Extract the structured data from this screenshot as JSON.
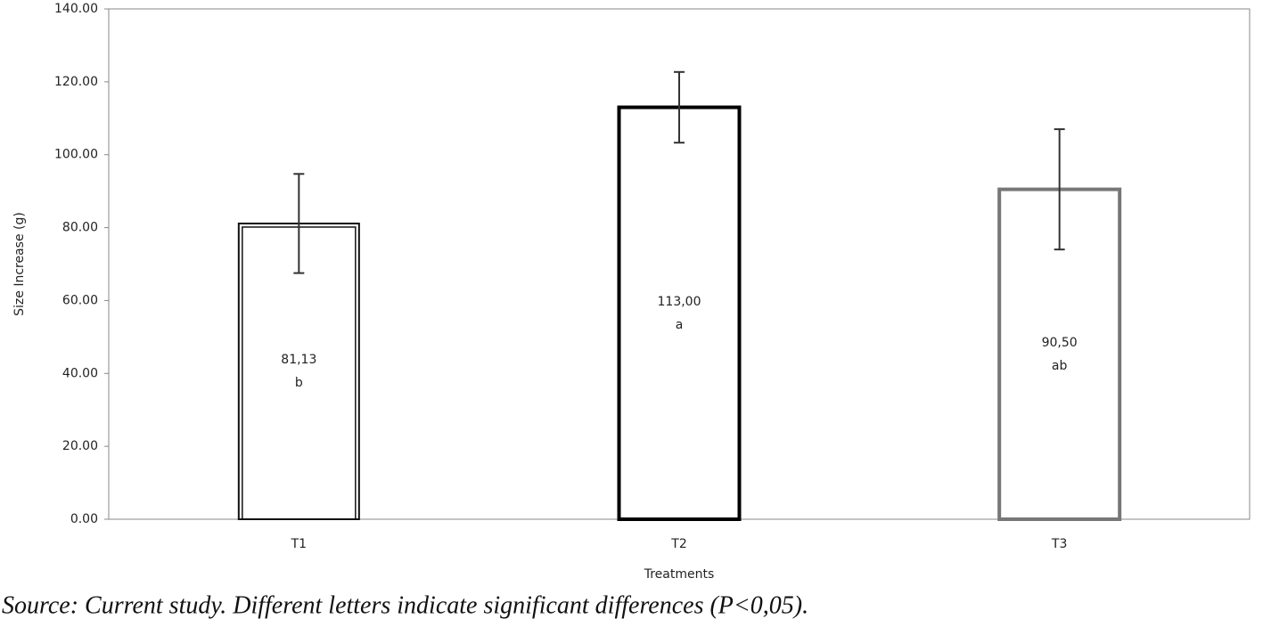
{
  "chart_data": {
    "type": "bar",
    "y_label": "Size Increase (g)",
    "x_label": "Treatments",
    "categories": [
      "T1",
      "T2",
      "T3"
    ],
    "values": [
      81.13,
      113.0,
      90.5
    ],
    "value_labels": [
      "81,13",
      "113,00",
      "90,50"
    ],
    "group_letters": [
      "b",
      "a",
      "ab"
    ],
    "errors": [
      13.6,
      9.7,
      16.5
    ],
    "edge_colors": [
      "#111111",
      "#000000",
      "#777777"
    ],
    "ylim": [
      0,
      140
    ],
    "yticks": [
      {
        "value": 0,
        "label": "0.00"
      },
      {
        "value": 20,
        "label": "20.00"
      },
      {
        "value": 40,
        "label": "40.00"
      },
      {
        "value": 60,
        "label": "60.00"
      },
      {
        "value": 80,
        "label": "80.00"
      },
      {
        "value": 100,
        "label": "100.00"
      },
      {
        "value": 120,
        "label": "120.00"
      },
      {
        "value": 140,
        "label": "140.00"
      }
    ],
    "caption": "Source:  Current study. Different letters indicate significant differences (P<0,05)."
  }
}
